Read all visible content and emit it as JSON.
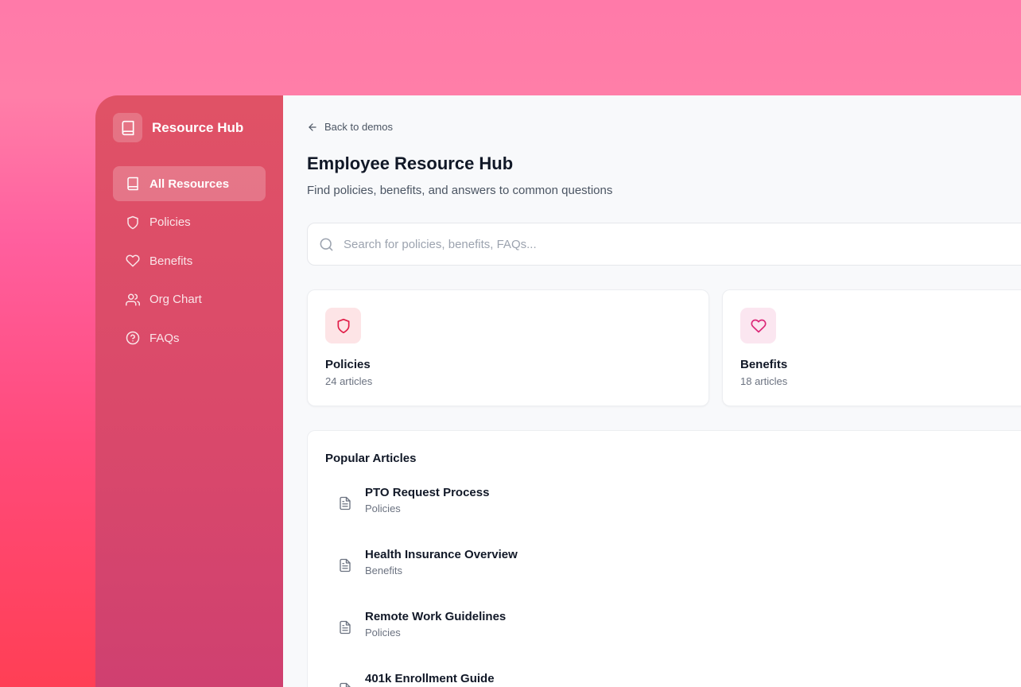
{
  "sidebar": {
    "brand": "Resource Hub",
    "items": [
      {
        "label": "All Resources",
        "icon": "book-icon",
        "active": true
      },
      {
        "label": "Policies",
        "icon": "shield-icon"
      },
      {
        "label": "Benefits",
        "icon": "heart-icon"
      },
      {
        "label": "Org Chart",
        "icon": "users-icon"
      },
      {
        "label": "FAQs",
        "icon": "help-circle-icon"
      }
    ]
  },
  "main": {
    "back": "Back to demos",
    "title": "Employee Resource Hub",
    "subtitle": "Find policies, benefits, and answers to common questions",
    "search_placeholder": "Search for policies, benefits, FAQs...",
    "cards": [
      {
        "title": "Policies",
        "count": "24 articles",
        "color": "#e11d48",
        "bg": "#fde4e6"
      },
      {
        "title": "Benefits",
        "count": "18 articles",
        "color": "#db2777",
        "bg": "#fbe6f0"
      }
    ],
    "popular": {
      "title": "Popular Articles",
      "articles": [
        {
          "title": "PTO Request Process",
          "category": "Policies"
        },
        {
          "title": "Health Insurance Overview",
          "category": "Benefits"
        },
        {
          "title": "Remote Work Guidelines",
          "category": "Policies"
        },
        {
          "title": "401k Enrollment Guide",
          "category": ""
        }
      ]
    }
  }
}
